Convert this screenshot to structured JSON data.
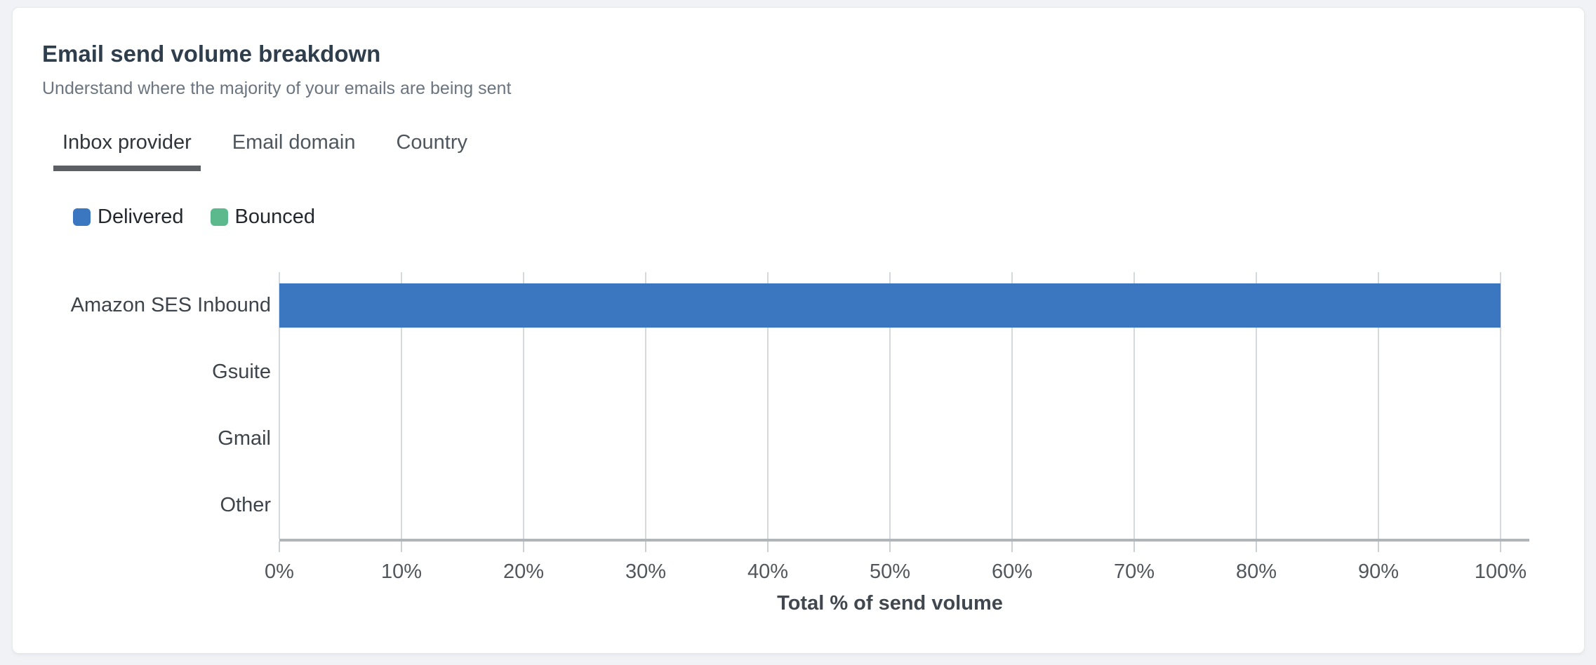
{
  "card": {
    "title": "Email send volume breakdown",
    "subtitle": "Understand where the majority of your emails are being sent"
  },
  "tabs": [
    {
      "label": "Inbox provider",
      "active": true
    },
    {
      "label": "Email domain",
      "active": false
    },
    {
      "label": "Country",
      "active": false
    }
  ],
  "chart_data": {
    "type": "bar",
    "orientation": "horizontal",
    "stacked": true,
    "categories": [
      "Amazon SES Inbound",
      "Gsuite",
      "Gmail",
      "Other"
    ],
    "series": [
      {
        "name": "Delivered",
        "color": "#3b76c1",
        "values": [
          100,
          0,
          0,
          0
        ]
      },
      {
        "name": "Bounced",
        "color": "#5cb98e",
        "values": [
          0,
          0,
          0,
          0
        ]
      }
    ],
    "xlabel": "Total % of send volume",
    "xlim": [
      0,
      100
    ],
    "x_tick_labels": [
      "0%",
      "10%",
      "20%",
      "30%",
      "40%",
      "50%",
      "60%",
      "70%",
      "80%",
      "90%",
      "100%"
    ],
    "grid": true,
    "legend_position": "top-left"
  },
  "colors": {
    "delivered": "#3b76c1",
    "bounced": "#5cb98e",
    "tab_underline": "#5c6064",
    "axis_line": "#b0b5ba",
    "gridline": "#d5d9dd",
    "card_background": "#ffffff",
    "page_background": "#f0f2f5"
  }
}
